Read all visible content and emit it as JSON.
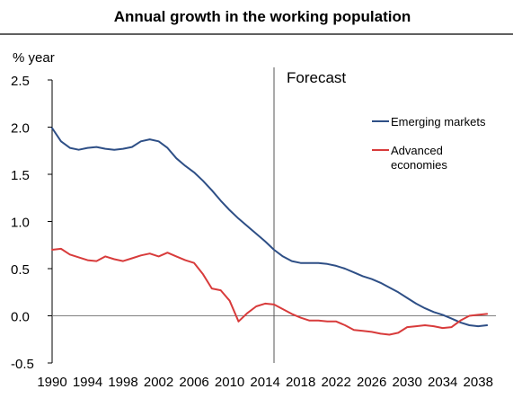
{
  "chart_data": {
    "type": "line",
    "title": "Annual growth in the working population",
    "ylabel": "% year",
    "xlabel": "",
    "xlim": [
      1990,
      2040
    ],
    "ylim": [
      -0.5,
      2.5
    ],
    "yticks": [
      "-0.5",
      "0.0",
      "0.5",
      "1.0",
      "1.5",
      "2.0",
      "2.5"
    ],
    "xticks": [
      "1990",
      "1994",
      "1998",
      "2002",
      "2006",
      "2010",
      "2014",
      "2018",
      "2022",
      "2026",
      "2030",
      "2034",
      "2038"
    ],
    "grid": false,
    "legend_position": "right",
    "annotation": {
      "label": "Forecast",
      "x": 2015
    },
    "series": [
      {
        "name": "Emerging markets",
        "color": "#2e4f86",
        "x": [
          1990,
          1991,
          1992,
          1993,
          1994,
          1995,
          1996,
          1997,
          1998,
          1999,
          2000,
          2001,
          2002,
          2003,
          2004,
          2005,
          2006,
          2007,
          2008,
          2009,
          2010,
          2011,
          2012,
          2013,
          2014,
          2015,
          2016,
          2017,
          2018,
          2019,
          2020,
          2021,
          2022,
          2023,
          2024,
          2025,
          2026,
          2027,
          2028,
          2029,
          2030,
          2031,
          2032,
          2033,
          2034,
          2035,
          2036,
          2037,
          2038,
          2039
        ],
        "y": [
          1.99,
          1.85,
          1.78,
          1.76,
          1.78,
          1.79,
          1.77,
          1.76,
          1.77,
          1.79,
          1.85,
          1.87,
          1.85,
          1.78,
          1.67,
          1.59,
          1.52,
          1.43,
          1.33,
          1.22,
          1.12,
          1.03,
          0.95,
          0.87,
          0.79,
          0.7,
          0.63,
          0.58,
          0.56,
          0.56,
          0.56,
          0.55,
          0.53,
          0.5,
          0.46,
          0.42,
          0.39,
          0.35,
          0.3,
          0.25,
          0.19,
          0.13,
          0.08,
          0.04,
          0.01,
          -0.03,
          -0.07,
          -0.1,
          -0.11,
          -0.1
        ]
      },
      {
        "name": "Advanced economies",
        "color": "#d83b3b",
        "x": [
          1990,
          1991,
          1992,
          1993,
          1994,
          1995,
          1996,
          1997,
          1998,
          1999,
          2000,
          2001,
          2002,
          2003,
          2004,
          2005,
          2006,
          2007,
          2008,
          2009,
          2010,
          2011,
          2012,
          2013,
          2014,
          2015,
          2016,
          2017,
          2018,
          2019,
          2020,
          2021,
          2022,
          2023,
          2024,
          2025,
          2026,
          2027,
          2028,
          2029,
          2030,
          2031,
          2032,
          2033,
          2034,
          2035,
          2036,
          2037,
          2038,
          2039
        ],
        "y": [
          0.7,
          0.71,
          0.65,
          0.62,
          0.59,
          0.58,
          0.63,
          0.6,
          0.58,
          0.61,
          0.64,
          0.66,
          0.63,
          0.67,
          0.63,
          0.59,
          0.56,
          0.44,
          0.29,
          0.27,
          0.16,
          -0.06,
          0.03,
          0.1,
          0.13,
          0.12,
          0.07,
          0.02,
          -0.02,
          -0.05,
          -0.05,
          -0.06,
          -0.06,
          -0.1,
          -0.15,
          -0.16,
          -0.17,
          -0.19,
          -0.2,
          -0.18,
          -0.12,
          -0.11,
          -0.1,
          -0.11,
          -0.13,
          -0.12,
          -0.05,
          0.0,
          0.01,
          0.02
        ]
      }
    ]
  }
}
